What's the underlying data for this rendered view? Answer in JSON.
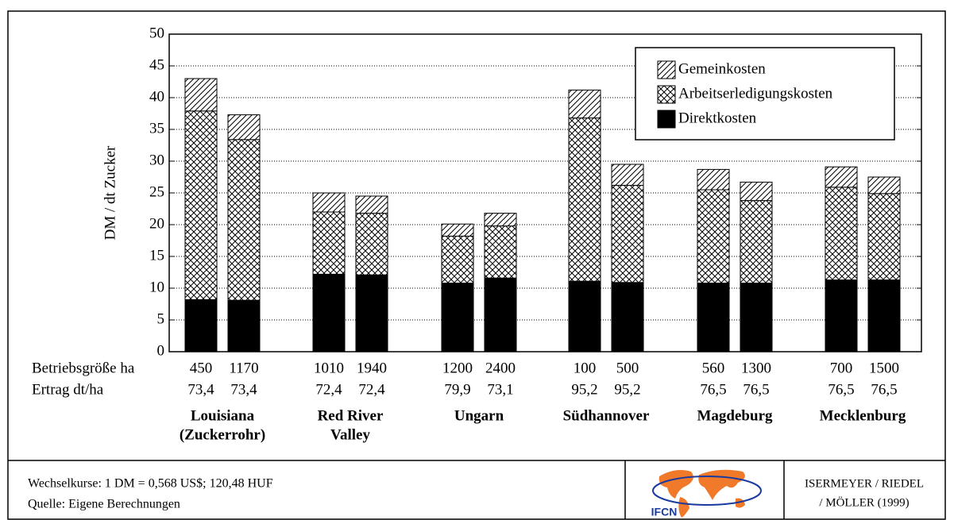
{
  "chart_data": {
    "type": "stacked_bar",
    "y_label": "DM / dt Zucker",
    "ylim": [
      0,
      50
    ],
    "yticks": [
      0,
      5,
      10,
      15,
      20,
      25,
      30,
      35,
      40,
      45,
      50
    ],
    "grid": true,
    "legend": "top-right",
    "series": [
      {
        "name": "Gemeinkosten",
        "pattern": "diagonal",
        "color": "#000000",
        "values": [
          5.1,
          3.9,
          3.0,
          2.7,
          1.9,
          2.0,
          4.4,
          3.3,
          3.2,
          2.9,
          3.2,
          2.6
        ]
      },
      {
        "name": "Arbeitserledigungskosten",
        "pattern": "crosshatch",
        "color": "#000000",
        "values": [
          29.7,
          25.3,
          9.8,
          9.7,
          7.4,
          8.2,
          25.7,
          15.3,
          14.7,
          13.0,
          14.6,
          13.6
        ]
      },
      {
        "name": "Direktkosten",
        "pattern": "solid",
        "color": "#000000",
        "values": [
          8.2,
          8.1,
          12.2,
          12.1,
          10.8,
          11.6,
          11.1,
          10.9,
          10.8,
          10.8,
          11.3,
          11.3
        ]
      }
    ],
    "row_labels": [
      "Betriebsgröße ha",
      "Ertrag dt/ha"
    ],
    "categories": [
      "450",
      "1170",
      "1010",
      "1940",
      "1200",
      "2400",
      "100",
      "500",
      "560",
      "1300",
      "700",
      "1500"
    ],
    "yields": [
      "73,4",
      "73,4",
      "72,4",
      "72,4",
      "79,9",
      "73,1",
      "95,2",
      "95,2",
      "76,5",
      "76,5",
      "76,5",
      "76,5"
    ],
    "groups": [
      [
        "Louisiana",
        "(Zuckerrohr)"
      ],
      [
        "Red River",
        "Valley"
      ],
      [
        "Ungarn"
      ],
      [
        "Südhannover"
      ],
      [
        "Magdeburg"
      ],
      [
        "Mecklenburg"
      ]
    ]
  },
  "footer": {
    "notes": [
      "Wechselkurse: 1 DM = 0,568 US$; 120,48 HUF",
      "Quelle: Eigene Berechnungen"
    ],
    "logo": "IFCN",
    "authors": [
      "ISERMEYER / RIEDEL",
      "/ MÖLLER (1999)"
    ]
  }
}
